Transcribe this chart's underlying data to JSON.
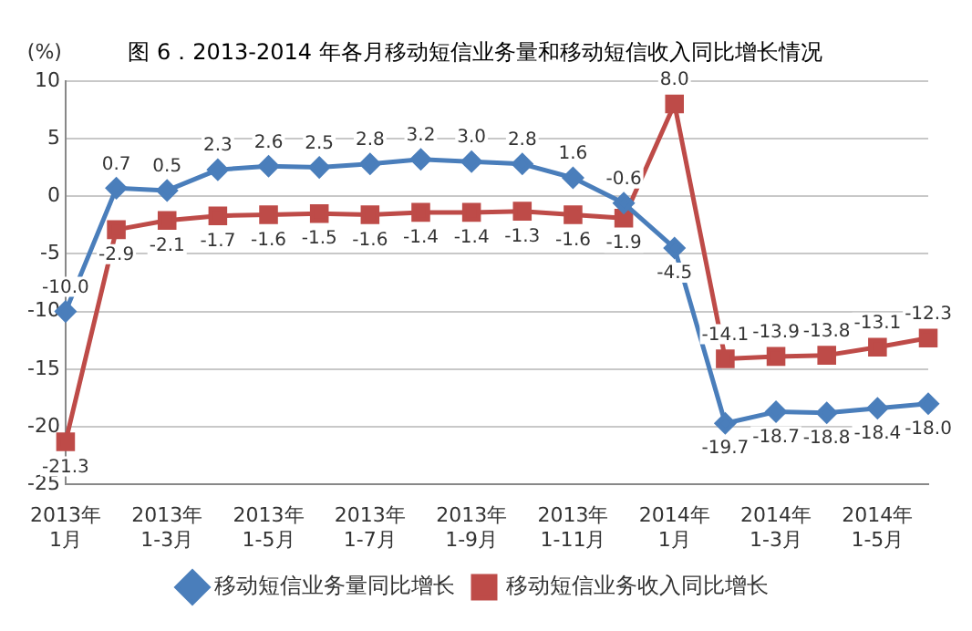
{
  "chart_data": {
    "type": "line",
    "title": "图 6．2013-2014 年各月移动短信业务量和移动短信收入同比增长情况",
    "ylabel": "(%)",
    "categories": [
      "2013年\n1月",
      null,
      "2013年\n1-3月",
      null,
      "2013年\n1-5月",
      null,
      "2013年\n1-7月",
      null,
      "2013年\n1-9月",
      null,
      "2013年\n1-11月",
      null,
      "2014年\n1月",
      null,
      "2014年\n1-3月",
      null,
      "2014年\n1-5月",
      null
    ],
    "series": [
      {
        "name": "移动短信业务量同比增长",
        "color": "#4a7ebb",
        "marker": "diamond",
        "values": [
          -10.0,
          0.7,
          0.5,
          2.3,
          2.6,
          2.5,
          2.8,
          3.2,
          3.0,
          2.8,
          1.6,
          -0.6,
          -4.5,
          -19.7,
          -18.7,
          -18.8,
          -18.4,
          -18.0
        ],
        "value_labels": [
          "-10.0",
          "0.7",
          "0.5",
          "2.3",
          "2.6",
          "2.5",
          "2.8",
          "3.2",
          "3.0",
          "2.8",
          "1.6",
          "-0.6",
          "-4.5",
          "-19.7",
          "-18.7",
          "-18.8",
          "-18.4",
          "-18.0"
        ]
      },
      {
        "name": "移动短信业务收入同比增长",
        "color": "#be4b48",
        "marker": "square",
        "values": [
          -21.3,
          -2.9,
          -2.1,
          -1.7,
          -1.6,
          -1.5,
          -1.6,
          -1.4,
          -1.4,
          -1.3,
          -1.6,
          -1.9,
          8.0,
          -14.1,
          -13.9,
          -13.8,
          -13.1,
          -12.3
        ],
        "value_labels": [
          "-21.3",
          "-2.9",
          "-2.1",
          "-1.7",
          "-1.6",
          "-1.5",
          "-1.6",
          "-1.4",
          "-1.4",
          "-1.3",
          "-1.6",
          "-1.9",
          "8.0",
          "-14.1",
          "-13.9",
          "-13.8",
          "-13.1",
          "-12.3"
        ]
      }
    ],
    "ylim": [
      -25,
      10
    ],
    "yticks": [
      -25,
      -20,
      -15,
      -10,
      -5,
      0,
      5,
      10
    ],
    "grid": "y",
    "legend": "bottom"
  }
}
